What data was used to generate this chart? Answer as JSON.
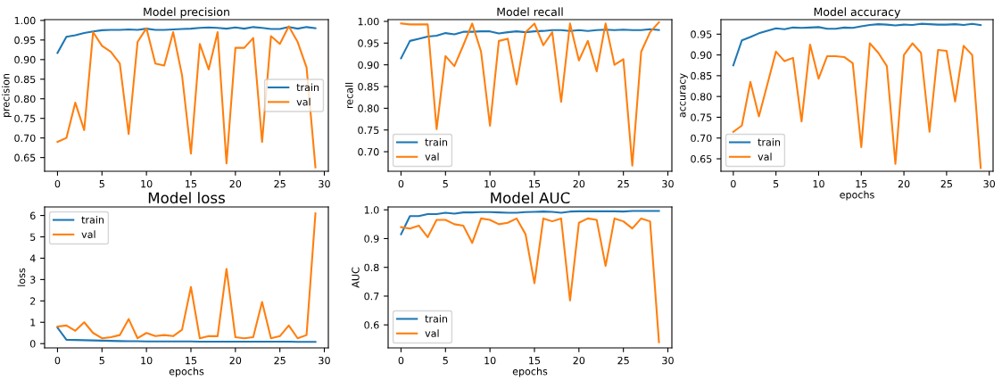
{
  "chart_data": [
    {
      "type": "line",
      "title": "Model precision",
      "ylabel": "precision",
      "x": [
        0,
        1,
        2,
        3,
        4,
        5,
        6,
        7,
        8,
        9,
        10,
        11,
        12,
        13,
        14,
        15,
        16,
        17,
        18,
        19,
        20,
        21,
        22,
        23,
        24,
        25,
        26,
        27,
        28,
        29
      ],
      "xlim": [
        -1.45,
        30.45
      ],
      "xticks": [
        0,
        5,
        10,
        15,
        20,
        25,
        30
      ],
      "ylim": [
        0.615,
        1.002
      ],
      "yticks": [
        {
          "value": 0.65,
          "label": "0.65"
        },
        {
          "value": 0.7,
          "label": "0.70"
        },
        {
          "value": 0.75,
          "label": "0.75"
        },
        {
          "value": 0.8,
          "label": "0.80"
        },
        {
          "value": 0.85,
          "label": "0.85"
        },
        {
          "value": 0.9,
          "label": "0.90"
        },
        {
          "value": 0.95,
          "label": "0.95"
        },
        {
          "value": 1.0,
          "label": "1.00"
        }
      ],
      "legend": "right",
      "grid": false,
      "series": [
        {
          "name": "train",
          "color": "#1f77b4",
          "values": [
            0.917,
            0.958,
            0.962,
            0.968,
            0.972,
            0.975,
            0.976,
            0.976,
            0.977,
            0.976,
            0.979,
            0.976,
            0.976,
            0.977,
            0.978,
            0.979,
            0.981,
            0.982,
            0.981,
            0.979,
            0.982,
            0.979,
            0.983,
            0.981,
            0.978,
            0.978,
            0.983,
            0.979,
            0.983,
            0.98
          ]
        },
        {
          "name": "val",
          "color": "#ff7f0e",
          "values": [
            0.69,
            0.7,
            0.79,
            0.72,
            0.97,
            0.935,
            0.92,
            0.89,
            0.71,
            0.945,
            0.98,
            0.89,
            0.885,
            0.97,
            0.86,
            0.66,
            0.94,
            0.875,
            0.97,
            0.635,
            0.93,
            0.93,
            0.955,
            0.69,
            0.96,
            0.94,
            0.985,
            0.945,
            0.88,
            0.625
          ]
        }
      ]
    },
    {
      "type": "line",
      "title": "Model recall",
      "ylabel": "recall",
      "x": [
        0,
        1,
        2,
        3,
        4,
        5,
        6,
        7,
        8,
        9,
        10,
        11,
        12,
        13,
        14,
        15,
        16,
        17,
        18,
        19,
        20,
        21,
        22,
        23,
        24,
        25,
        26,
        27,
        28,
        29
      ],
      "xlim": [
        -1.45,
        30.45
      ],
      "xticks": [
        0,
        5,
        10,
        15,
        20,
        25,
        30
      ],
      "ylim": [
        0.655,
        1.004
      ],
      "yticks": [
        {
          "value": 0.7,
          "label": "0.70"
        },
        {
          "value": 0.75,
          "label": "0.75"
        },
        {
          "value": 0.8,
          "label": "0.80"
        },
        {
          "value": 0.85,
          "label": "0.85"
        },
        {
          "value": 0.9,
          "label": "0.90"
        },
        {
          "value": 0.95,
          "label": "0.95"
        },
        {
          "value": 1.0,
          "label": "1.00"
        }
      ],
      "legend": "bottom left",
      "grid": false,
      "series": [
        {
          "name": "train",
          "color": "#1f77b4",
          "values": [
            0.915,
            0.955,
            0.96,
            0.965,
            0.967,
            0.973,
            0.97,
            0.976,
            0.976,
            0.977,
            0.977,
            0.972,
            0.975,
            0.977,
            0.975,
            0.977,
            0.978,
            0.98,
            0.98,
            0.978,
            0.98,
            0.978,
            0.98,
            0.981,
            0.98,
            0.981,
            0.98,
            0.98,
            0.982,
            0.98
          ]
        },
        {
          "name": "val",
          "color": "#ff7f0e",
          "values": [
            0.995,
            0.993,
            0.993,
            0.993,
            0.752,
            0.92,
            0.897,
            0.945,
            0.995,
            0.93,
            0.76,
            0.955,
            0.96,
            0.855,
            0.975,
            0.995,
            0.945,
            0.975,
            0.815,
            0.995,
            0.91,
            0.955,
            0.885,
            0.995,
            0.9,
            0.913,
            0.668,
            0.93,
            0.975,
            0.998
          ]
        }
      ]
    },
    {
      "type": "line",
      "title": "Model accuracy",
      "xlabel": "epochs",
      "ylabel": "accuracy",
      "x": [
        0,
        1,
        2,
        3,
        4,
        5,
        6,
        7,
        8,
        9,
        10,
        11,
        12,
        13,
        14,
        15,
        16,
        17,
        18,
        19,
        20,
        21,
        22,
        23,
        24,
        25,
        26,
        27,
        28,
        29
      ],
      "xlim": [
        -1.45,
        30.45
      ],
      "xticks": [
        0,
        5,
        10,
        15,
        20,
        25,
        30
      ],
      "ylim": [
        0.62,
        0.985
      ],
      "yticks": [
        {
          "value": 0.65,
          "label": "0.65"
        },
        {
          "value": 0.7,
          "label": "0.70"
        },
        {
          "value": 0.75,
          "label": "0.75"
        },
        {
          "value": 0.8,
          "label": "0.80"
        },
        {
          "value": 0.85,
          "label": "0.85"
        },
        {
          "value": 0.9,
          "label": "0.90"
        },
        {
          "value": 0.95,
          "label": "0.95"
        }
      ],
      "legend": "bottom left",
      "grid": false,
      "series": [
        {
          "name": "train",
          "color": "#1f77b4",
          "values": [
            0.875,
            0.935,
            0.943,
            0.952,
            0.958,
            0.964,
            0.962,
            0.966,
            0.965,
            0.966,
            0.967,
            0.963,
            0.963,
            0.966,
            0.965,
            0.969,
            0.972,
            0.974,
            0.973,
            0.971,
            0.973,
            0.972,
            0.975,
            0.974,
            0.973,
            0.973,
            0.974,
            0.972,
            0.975,
            0.972
          ]
        },
        {
          "name": "val",
          "color": "#ff7f0e",
          "values": [
            0.715,
            0.73,
            0.835,
            0.752,
            0.83,
            0.908,
            0.885,
            0.893,
            0.74,
            0.925,
            0.843,
            0.897,
            0.897,
            0.895,
            0.88,
            0.678,
            0.928,
            0.905,
            0.873,
            0.638,
            0.9,
            0.928,
            0.905,
            0.715,
            0.912,
            0.91,
            0.788,
            0.922,
            0.9,
            0.628
          ]
        }
      ]
    },
    {
      "type": "line",
      "title": "Model loss",
      "xlabel": "epochs",
      "ylabel": "loss",
      "x": [
        0,
        1,
        2,
        3,
        4,
        5,
        6,
        7,
        8,
        9,
        10,
        11,
        12,
        13,
        14,
        15,
        16,
        17,
        18,
        19,
        20,
        21,
        22,
        23,
        24,
        25,
        26,
        27,
        28,
        29
      ],
      "xlim": [
        -1.45,
        30.45
      ],
      "xticks": [
        0,
        5,
        10,
        15,
        20,
        25,
        30
      ],
      "ylim": [
        -0.2,
        6.4
      ],
      "yticks": [
        0,
        1,
        2,
        3,
        4,
        5,
        6
      ],
      "legend": "top left",
      "grid": false,
      "series": [
        {
          "name": "train",
          "color": "#1f77b4",
          "values": [
            0.75,
            0.18,
            0.17,
            0.16,
            0.15,
            0.14,
            0.13,
            0.12,
            0.11,
            0.11,
            0.1,
            0.1,
            0.1,
            0.1,
            0.1,
            0.1,
            0.09,
            0.09,
            0.09,
            0.09,
            0.09,
            0.09,
            0.09,
            0.09,
            0.09,
            0.09,
            0.09,
            0.08,
            0.08,
            0.08
          ]
        },
        {
          "name": "val",
          "color": "#ff7f0e",
          "values": [
            0.8,
            0.85,
            0.6,
            1.0,
            0.5,
            0.25,
            0.3,
            0.4,
            1.15,
            0.25,
            0.5,
            0.35,
            0.4,
            0.35,
            0.65,
            2.65,
            0.25,
            0.35,
            0.35,
            3.5,
            0.3,
            0.25,
            0.3,
            1.95,
            0.25,
            0.35,
            0.85,
            0.25,
            0.4,
            6.1
          ]
        }
      ]
    },
    {
      "type": "line",
      "title": "Model AUC",
      "xlabel": "epochs",
      "ylabel": "AUC",
      "x": [
        0,
        1,
        2,
        3,
        4,
        5,
        6,
        7,
        8,
        9,
        10,
        11,
        12,
        13,
        14,
        15,
        16,
        17,
        18,
        19,
        20,
        21,
        22,
        23,
        24,
        25,
        26,
        27,
        28,
        29
      ],
      "xlim": [
        -1.45,
        30.45
      ],
      "xticks": [
        0,
        5,
        10,
        15,
        20,
        25,
        30
      ],
      "ylim": [
        0.52,
        1.01
      ],
      "yticks": [
        {
          "value": 0.6,
          "label": "0.6"
        },
        {
          "value": 0.7,
          "label": "0.7"
        },
        {
          "value": 0.8,
          "label": "0.8"
        },
        {
          "value": 0.9,
          "label": "0.9"
        },
        {
          "value": 1.0,
          "label": "1.0"
        }
      ],
      "legend": "bottom left",
      "grid": false,
      "series": [
        {
          "name": "train",
          "color": "#1f77b4",
          "values": [
            0.915,
            0.978,
            0.978,
            0.985,
            0.985,
            0.99,
            0.987,
            0.991,
            0.991,
            0.992,
            0.992,
            0.991,
            0.99,
            0.99,
            0.992,
            0.993,
            0.994,
            0.993,
            0.99,
            0.994,
            0.995,
            0.995,
            0.995,
            0.995,
            0.995,
            0.994,
            0.996,
            0.996,
            0.996,
            0.996
          ]
        },
        {
          "name": "val",
          "color": "#ff7f0e",
          "values": [
            0.94,
            0.935,
            0.945,
            0.905,
            0.965,
            0.965,
            0.95,
            0.945,
            0.885,
            0.97,
            0.965,
            0.95,
            0.955,
            0.97,
            0.915,
            0.745,
            0.97,
            0.96,
            0.97,
            0.685,
            0.955,
            0.97,
            0.965,
            0.805,
            0.97,
            0.96,
            0.935,
            0.97,
            0.96,
            0.54
          ]
        }
      ]
    }
  ]
}
